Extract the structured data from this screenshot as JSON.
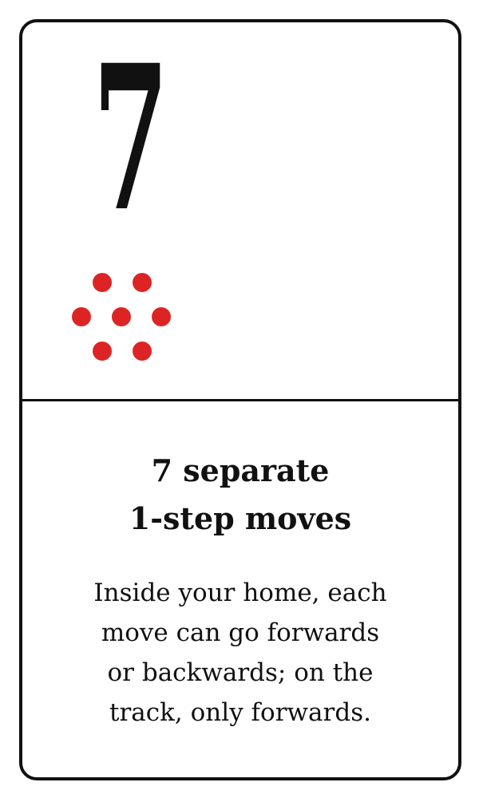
{
  "card": {
    "rank": "7",
    "pip_count": 7,
    "pip_color": "#dd2424",
    "title_lines": [
      "7 separate",
      "1-step moves"
    ],
    "description_lines": [
      "Inside your home, each",
      "move can go forwards",
      "or backwards; on the",
      "track, only forwards."
    ]
  }
}
